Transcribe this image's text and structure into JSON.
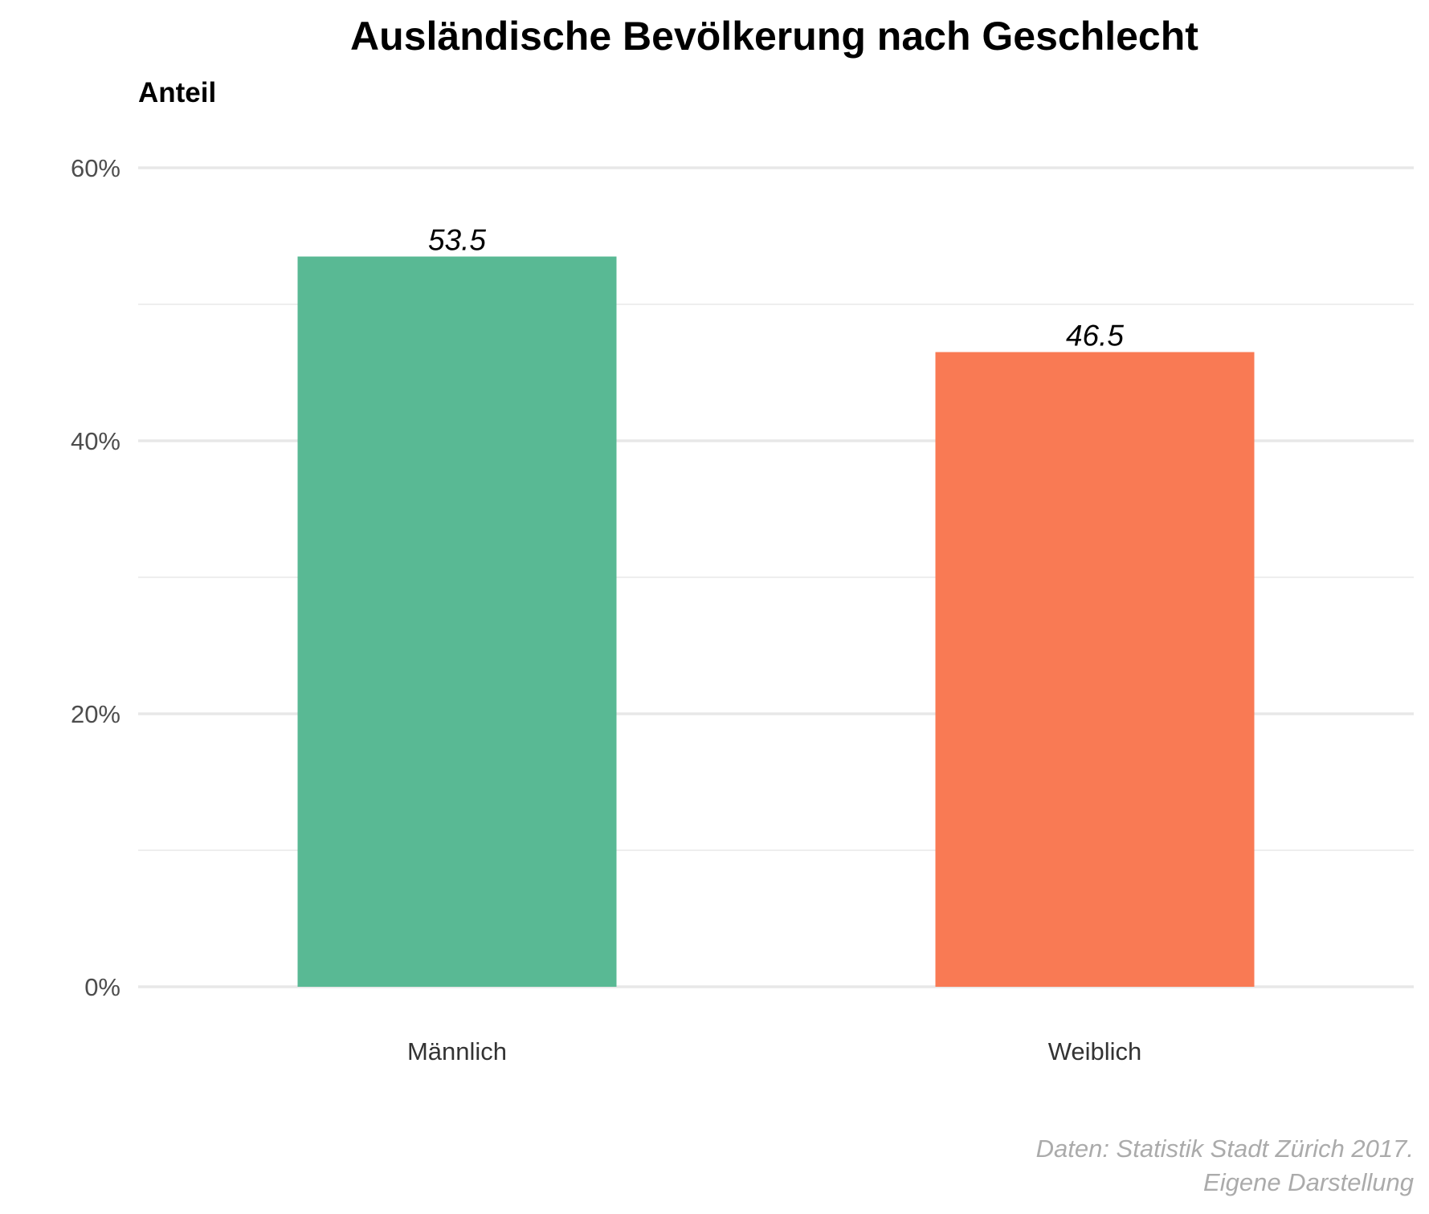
{
  "chart_data": {
    "type": "bar",
    "title": "Ausländische Bevölkerung nach Geschlecht",
    "ylabel": "Anteil",
    "xlabel": "",
    "categories": [
      "Männlich",
      "Weiblich"
    ],
    "values": [
      53.5,
      46.5
    ],
    "data_labels": [
      "53.5",
      "46.5"
    ],
    "colors": [
      "#59b994",
      "#f97a54"
    ],
    "ylim": [
      0,
      60
    ],
    "yticks": [
      0,
      20,
      40,
      60
    ],
    "ytick_labels": [
      "0%",
      "20%",
      "40%",
      "60%"
    ],
    "minor_yticks": [
      10,
      30,
      50
    ],
    "grid": true,
    "legend": "none",
    "caption": [
      "Daten: Statistik Stadt Zürich 2017.",
      "Eigene Darstellung"
    ]
  }
}
